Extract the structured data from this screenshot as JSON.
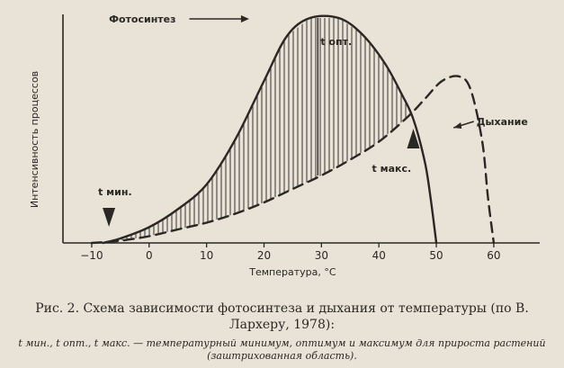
{
  "chart_data": {
    "type": "line",
    "title": "",
    "xlabel": "Температура, °С",
    "ylabel": "Интенсивность процессов",
    "xlim": [
      -15,
      68
    ],
    "ylim": [
      0,
      100
    ],
    "xticks": [
      -10,
      0,
      10,
      20,
      30,
      40,
      50,
      60
    ],
    "grid": false,
    "legend": "none",
    "shaded_region": "between photosynthesis and respiration curves from t мин. to t макс. (vertical hatching)",
    "series": [
      {
        "name": "Фотосинтез",
        "style": "solid",
        "x": [
          -8,
          -5,
          0,
          5,
          10,
          15,
          20,
          24,
          28,
          33,
          37,
          41,
          44,
          46,
          48,
          49,
          50
        ],
        "y": [
          0,
          2,
          7,
          15,
          26,
          46,
          72,
          92,
          100,
          100,
          93,
          80,
          66,
          55,
          36,
          20,
          0
        ]
      },
      {
        "name": "Дыхание",
        "style": "dashed",
        "x": [
          -10,
          -5,
          0,
          5,
          10,
          15,
          20,
          25,
          30,
          35,
          40,
          45,
          48,
          51,
          54,
          56,
          58,
          59,
          60
        ],
        "y": [
          0,
          1,
          3,
          6,
          9,
          13,
          18,
          24,
          30,
          37,
          45,
          56,
          64,
          72,
          74,
          68,
          45,
          20,
          0
        ]
      }
    ],
    "annotations": {
      "t_min": {
        "label": "t мин.",
        "x": -7
      },
      "t_opt": {
        "label": "t опт.",
        "x": 30
      },
      "t_max": {
        "label": "t макс.",
        "x": 46
      }
    }
  },
  "caption": {
    "main": "Рис. 2. Схема зависимости фотосинтеза и дыхания от температуры (по В. Лархеру, 1978):",
    "note": "t мин., t опт., t макс. — температурный минимум, оптимум и максимум для прироста растений (заштрихованная область)."
  }
}
